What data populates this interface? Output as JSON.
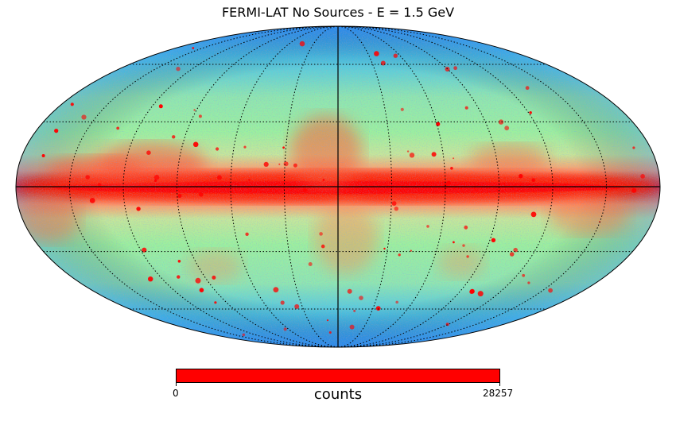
{
  "figure": {
    "title": "FERMI-LAT No Sources - E = 1.5 GeV",
    "projection": "mollweide",
    "graticule": true
  },
  "colorbar": {
    "label": "counts",
    "min_label": "0",
    "max_label": "28257",
    "fill_color": "#ff0000"
  },
  "colormap": {
    "name": "rainbow",
    "stops": [
      "#3a1fff",
      "#1a9cf2",
      "#5ee6d8",
      "#9af29e",
      "#f2c890",
      "#ff7a4a",
      "#ff0000"
    ]
  }
}
